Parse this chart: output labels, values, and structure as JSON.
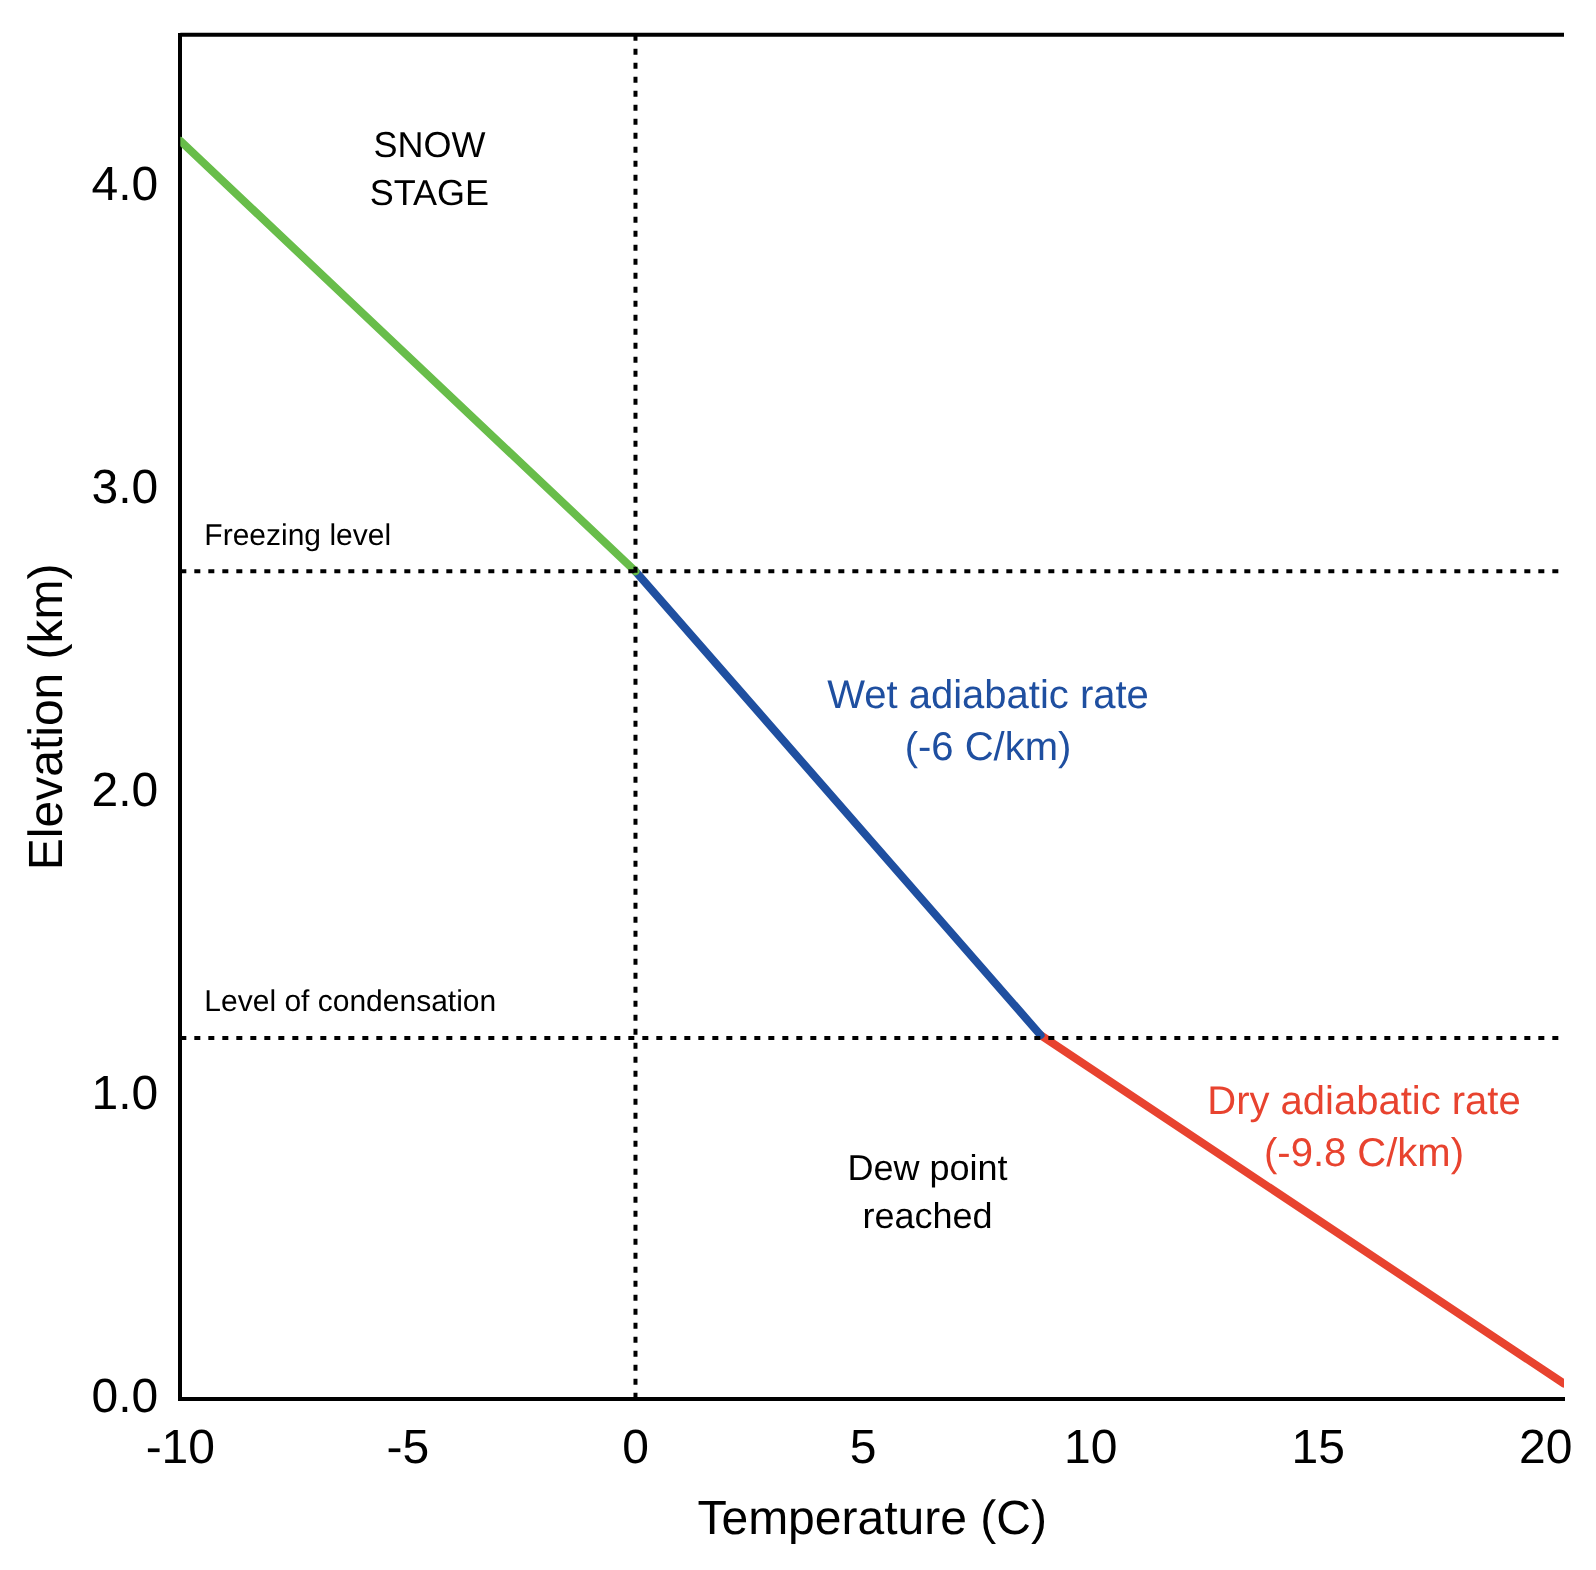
{
  "chart_data": {
    "type": "line",
    "xlabel": "Temperature (C)",
    "ylabel": "Elevation (km)",
    "xlim": [
      -10,
      20.4
    ],
    "xticks": [
      -10,
      -5,
      0,
      5,
      10,
      15,
      20
    ],
    "ylim": [
      0,
      4.5
    ],
    "yticks": [
      {
        "value": 0,
        "label": "0.0"
      },
      {
        "value": 1,
        "label": "1.0"
      },
      {
        "value": 2,
        "label": "2.0"
      },
      {
        "value": 3,
        "label": "3.0"
      },
      {
        "value": 4,
        "label": "4.0"
      }
    ],
    "grid": false,
    "legend": false,
    "marker": "none",
    "line_style": "solid",
    "series": [
      {
        "color": "#68bd4a",
        "x": [
          -10,
          0
        ],
        "values": [
          4.15,
          2.73
        ]
      },
      {
        "name": "Wet adiabatic rate (-6 C/km)",
        "color": "#1f4fa0",
        "x": [
          0,
          8.9
        ],
        "values": [
          2.73,
          1.2
        ]
      },
      {
        "name": "Dry adiabatic rate (-9.8 C/km)",
        "color": "#e8432f",
        "x": [
          8.9,
          20.4
        ],
        "values": [
          1.2,
          0.05
        ]
      }
    ],
    "ref_lines": [
      {
        "axis": "x",
        "value": 0,
        "line_style": "dotted",
        "color": "#000000"
      },
      {
        "axis": "y",
        "value": 2.73,
        "label": "Freezing level",
        "line_style": "dotted",
        "color": "#000000"
      },
      {
        "axis": "y",
        "value": 1.19,
        "label": "Level of condensation",
        "line_style": "dotted",
        "color": "#000000"
      }
    ],
    "annotations": [
      "SNOW STAGE",
      "Dew point reached"
    ]
  }
}
